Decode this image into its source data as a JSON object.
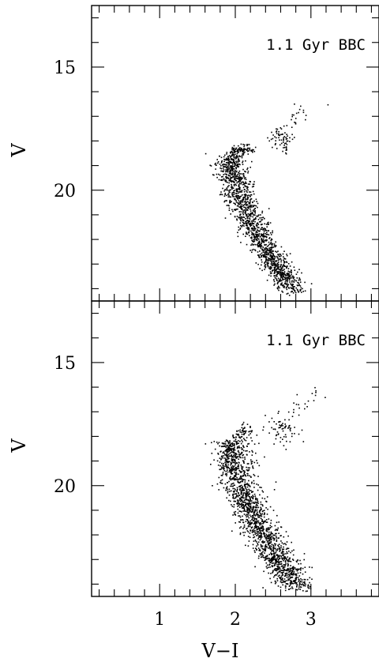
{
  "chart_data": [
    {
      "type": "scatter",
      "panel_label": "1.1 Gyr BBC",
      "xlabel": "",
      "ylabel": "V",
      "xlim": [
        0.1,
        3.9
      ],
      "ylim": [
        24.5,
        12.5
      ],
      "y_inverted": true,
      "yticks": [
        15,
        20
      ],
      "series": [
        {
          "features": [
            {
              "feature": "main-sequence",
              "count": 1500,
              "path": [
                [
                  1.92,
                  18.6
                ],
                [
                  1.98,
                  19.4
                ],
                [
                  2.05,
                  20.2
                ],
                [
                  2.15,
                  21.0
                ],
                [
                  2.3,
                  21.8
                ],
                [
                  2.45,
                  22.6
                ],
                [
                  2.6,
                  23.3
                ],
                [
                  2.75,
                  24.1
                ]
              ],
              "width": 0.2
            },
            {
              "feature": "subgiant-turnoff",
              "count": 120,
              "path": [
                [
                  1.9,
                  18.9
                ],
                [
                  1.98,
                  18.45
                ],
                [
                  2.1,
                  18.35
                ],
                [
                  2.2,
                  18.4
                ]
              ],
              "width": 0.09
            },
            {
              "feature": "red-clump",
              "count": 60,
              "center": [
                2.63,
                17.95
              ],
              "spread": [
                0.08,
                0.25
              ]
            },
            {
              "feature": "giant-branch",
              "count": 26,
              "path": [
                [
                  2.45,
                  18.3
                ],
                [
                  2.65,
                  17.6
                ],
                [
                  2.85,
                  17.0
                ],
                [
                  3.05,
                  16.4
                ]
              ],
              "width": 0.18
            }
          ]
        }
      ]
    },
    {
      "type": "scatter",
      "panel_label": "1.1 Gyr BBC",
      "xlabel": "V−I",
      "ylabel": "V",
      "xlim": [
        0.1,
        3.9
      ],
      "ylim": [
        24.5,
        12.5
      ],
      "y_inverted": true,
      "xticks": [
        1,
        2,
        3
      ],
      "yticks": [
        15,
        20
      ],
      "series": [
        {
          "features": [
            {
              "feature": "main-sequence",
              "count": 1700,
              "path": [
                [
                  1.95,
                  18.2
                ],
                [
                  2.0,
                  19.2
                ],
                [
                  2.08,
                  20.2
                ],
                [
                  2.2,
                  21.0
                ],
                [
                  2.35,
                  21.9
                ],
                [
                  2.5,
                  22.7
                ],
                [
                  2.65,
                  23.4
                ],
                [
                  2.8,
                  24.1
                ]
              ],
              "width": 0.24
            },
            {
              "feature": "subgiant-turnoff",
              "count": 140,
              "path": [
                [
                  1.88,
                  19.3
                ],
                [
                  1.95,
                  18.4
                ],
                [
                  2.08,
                  17.9
                ],
                [
                  2.2,
                  17.7
                ]
              ],
              "width": 0.12
            },
            {
              "feature": "red-clump",
              "count": 55,
              "center": [
                2.65,
                17.75
              ],
              "spread": [
                0.1,
                0.3
              ]
            },
            {
              "feature": "giant-branch",
              "count": 34,
              "path": [
                [
                  2.45,
                  17.9
                ],
                [
                  2.65,
                  17.2
                ],
                [
                  2.85,
                  16.7
                ],
                [
                  3.05,
                  16.3
                ]
              ],
              "width": 0.2
            }
          ]
        }
      ]
    }
  ]
}
